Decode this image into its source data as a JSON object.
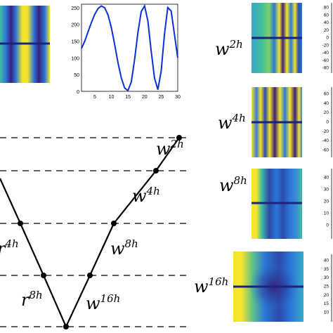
{
  "colors": {
    "blue": "#0a2fd6",
    "dark_blue": "#1a237e",
    "yellow": "#f4e52c",
    "teal": "#3fbfa0",
    "mid_blue": "#2b77d8",
    "navy": "#3a1f7a",
    "dash": "#000000"
  },
  "top_plot": {
    "y_ticks": [
      "250",
      "200",
      "150",
      "100",
      "50",
      "0"
    ],
    "x_ticks": [
      "5",
      "10",
      "15",
      "20",
      "25",
      "30"
    ],
    "series": [
      128,
      150,
      178,
      206,
      230,
      247,
      255,
      249,
      228,
      190,
      140,
      85,
      40,
      10,
      2,
      28,
      95,
      175,
      238,
      255,
      210,
      120,
      40,
      5,
      60,
      170,
      250,
      240,
      170,
      100
    ]
  },
  "v_cycle": {
    "right_labels": [
      {
        "base": "w",
        "exp": "2h"
      },
      {
        "base": "w",
        "exp": "4h"
      },
      {
        "base": "w",
        "exp": "8h"
      },
      {
        "base": "w",
        "exp": "16h"
      }
    ],
    "left_labels": [
      {
        "base": "r",
        "exp": "4h"
      },
      {
        "base": "r",
        "exp": "8h"
      }
    ]
  },
  "field_panels": [
    {
      "label": {
        "base": "w",
        "exp": "2h"
      },
      "ticks": [
        "80",
        "60",
        "40",
        "20",
        "0",
        "-20",
        "-40",
        "-60",
        "-80"
      ]
    },
    {
      "label": {
        "base": "w",
        "exp": "4h"
      },
      "ticks": [
        "60",
        "40",
        "20",
        "0",
        "-20",
        "-40",
        "-60"
      ]
    },
    {
      "label": {
        "base": "w",
        "exp": "8h"
      },
      "ticks": [
        "40",
        "30",
        "20",
        "10",
        "0"
      ]
    },
    {
      "label": {
        "base": "w",
        "exp": "16h"
      },
      "ticks": [
        "40",
        "35",
        "30",
        "25",
        "20",
        "15",
        "10"
      ]
    }
  ]
}
